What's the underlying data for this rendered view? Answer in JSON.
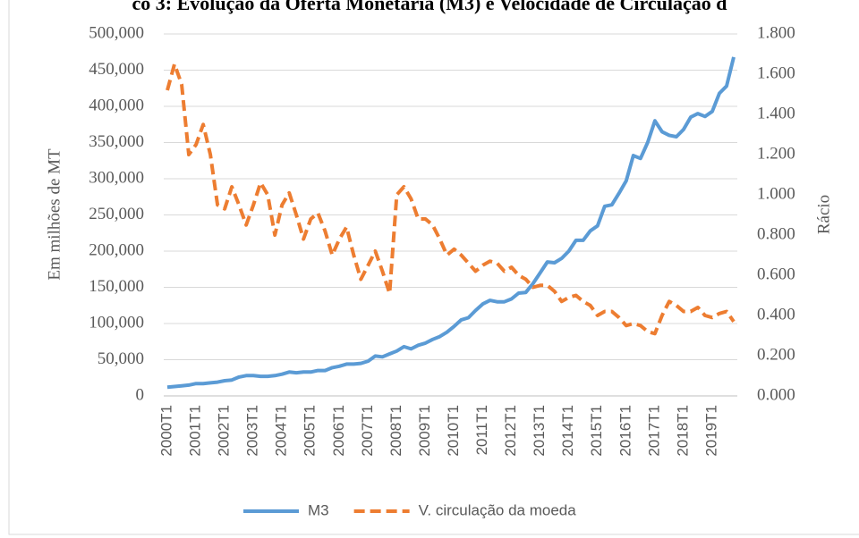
{
  "chart_data": {
    "type": "line",
    "title": "co 3: Evolução da Oferta Monetária (M3) e Velocidade de Circulação d",
    "y_label": "Em milhões de MT",
    "y2_label": "Rácio",
    "categories": [
      "2000T1",
      null,
      null,
      null,
      "2001T1",
      null,
      null,
      null,
      "2002T1",
      null,
      null,
      null,
      "2003T1",
      null,
      null,
      null,
      "2004T1",
      null,
      null,
      null,
      "2005T1",
      null,
      null,
      null,
      "2006T1",
      null,
      null,
      null,
      "2007T1",
      null,
      null,
      null,
      "2008T1",
      null,
      null,
      null,
      "2009T1",
      null,
      null,
      null,
      "2010T1",
      null,
      null,
      null,
      "2011T1",
      null,
      null,
      null,
      "2012T1",
      null,
      null,
      null,
      "2013T1",
      null,
      null,
      null,
      "2014T1",
      null,
      null,
      null,
      "2015T1",
      null,
      null,
      null,
      "2016T1",
      null,
      null,
      null,
      "2017T1",
      null,
      null,
      null,
      "2018T1",
      null,
      null,
      null,
      "2019T1",
      null,
      null,
      null
    ],
    "series": [
      {
        "name": "M3",
        "color": "#5b9bd5",
        "dashed": false,
        "values": [
          12000,
          13000,
          14000,
          15000,
          17000,
          17000,
          18000,
          19000,
          21000,
          22000,
          26000,
          28000,
          28000,
          27000,
          27000,
          28000,
          30000,
          33000,
          32000,
          33000,
          33000,
          35000,
          35000,
          39000,
          41000,
          44000,
          44000,
          45000,
          48000,
          55000,
          54000,
          58000,
          62000,
          68000,
          65000,
          70000,
          73000,
          78000,
          82000,
          88000,
          96000,
          105000,
          108000,
          118000,
          127000,
          132000,
          130000,
          130000,
          134000,
          142000,
          143000,
          155000,
          170000,
          185000,
          184000,
          190000,
          200000,
          215000,
          215000,
          228000,
          235000,
          262000,
          264000,
          280000,
          297000,
          332000,
          328000,
          350000,
          380000,
          365000,
          360000,
          358000,
          368000,
          385000,
          390000,
          386000,
          393000,
          418000,
          428000,
          468000
        ]
      },
      {
        "name": "V. circulação da moeda",
        "color": "#ed7d31",
        "dashed": true,
        "axis": "y2",
        "values": [
          1.52,
          1.65,
          1.55,
          1.2,
          1.25,
          1.35,
          1.2,
          0.95,
          0.93,
          1.04,
          0.95,
          0.85,
          0.95,
          1.06,
          1.0,
          0.8,
          0.95,
          1.01,
          0.9,
          0.78,
          0.88,
          0.91,
          0.82,
          0.7,
          0.78,
          0.84,
          0.7,
          0.58,
          0.65,
          0.72,
          0.62,
          0.51,
          1.0,
          1.04,
          0.98,
          0.88,
          0.88,
          0.85,
          0.78,
          0.7,
          0.73,
          0.7,
          0.66,
          0.62,
          0.65,
          0.67,
          0.66,
          0.62,
          0.64,
          0.6,
          0.58,
          0.54,
          0.55,
          0.55,
          0.52,
          0.47,
          0.49,
          0.5,
          0.47,
          0.45,
          0.4,
          0.42,
          0.42,
          0.39,
          0.35,
          0.36,
          0.35,
          0.32,
          0.31,
          0.4,
          0.47,
          0.45,
          0.42,
          0.42,
          0.44,
          0.4,
          0.39,
          0.41,
          0.42,
          0.37
        ]
      }
    ],
    "ylim": [
      0,
      500000
    ],
    "yticks": [
      0,
      {
        "value": 50000,
        "label": "50,000"
      },
      {
        "value": 100000,
        "label": "100,000"
      },
      {
        "value": 150000,
        "label": "150,000"
      },
      {
        "value": 200000,
        "label": "200,000"
      },
      {
        "value": 250000,
        "label": "250,000"
      },
      {
        "value": 300000,
        "label": "300,000"
      },
      {
        "value": 350000,
        "label": "350,000"
      },
      {
        "value": 400000,
        "label": "400,000"
      },
      {
        "value": 450000,
        "label": "450,000"
      },
      {
        "value": 500000,
        "label": "500,000"
      }
    ],
    "y2lim": [
      0,
      1.8
    ],
    "y2ticks": [
      {
        "value": 0,
        "label": "0.000"
      },
      {
        "value": 0.2,
        "label": "0.200"
      },
      {
        "value": 0.4,
        "label": "0.400"
      },
      {
        "value": 0.6,
        "label": "0.600"
      },
      {
        "value": 0.8,
        "label": "0.800"
      },
      {
        "value": 1.0,
        "label": "1.000"
      },
      {
        "value": 1.2,
        "label": "1.200"
      },
      {
        "value": 1.4,
        "label": "1.400"
      },
      {
        "value": 1.6,
        "label": "1.600"
      },
      {
        "value": 1.8,
        "label": "1.800"
      }
    ],
    "grid": true,
    "legend": "bottom"
  }
}
